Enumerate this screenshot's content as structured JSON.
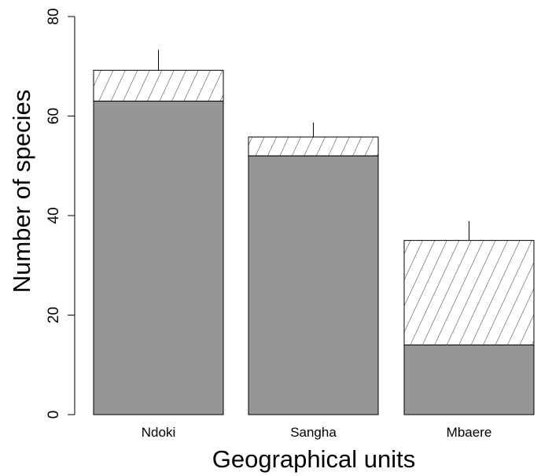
{
  "chart_data": {
    "type": "bar",
    "stacked": true,
    "title": "",
    "xlabel": "Geographical units",
    "ylabel": "Number of species",
    "ylim": [
      0,
      80
    ],
    "yticks": [
      "0",
      "20",
      "40",
      "60",
      "80"
    ],
    "grid": false,
    "categories": [
      "Ndoki",
      "Sangha",
      "Mbaere"
    ],
    "series": [
      {
        "values": [
          63,
          52,
          14
        ],
        "fill": "solid"
      },
      {
        "values": [
          6.2,
          3.8,
          21
        ],
        "fill": "hatched"
      }
    ],
    "totals": [
      69.2,
      55.8,
      35
    ],
    "error_upper": [
      73.3,
      58.7,
      38.9
    ],
    "colors": {
      "solid": "#969696",
      "hatch": "#000000",
      "outline": "#000000",
      "background": "#ffffff"
    }
  }
}
